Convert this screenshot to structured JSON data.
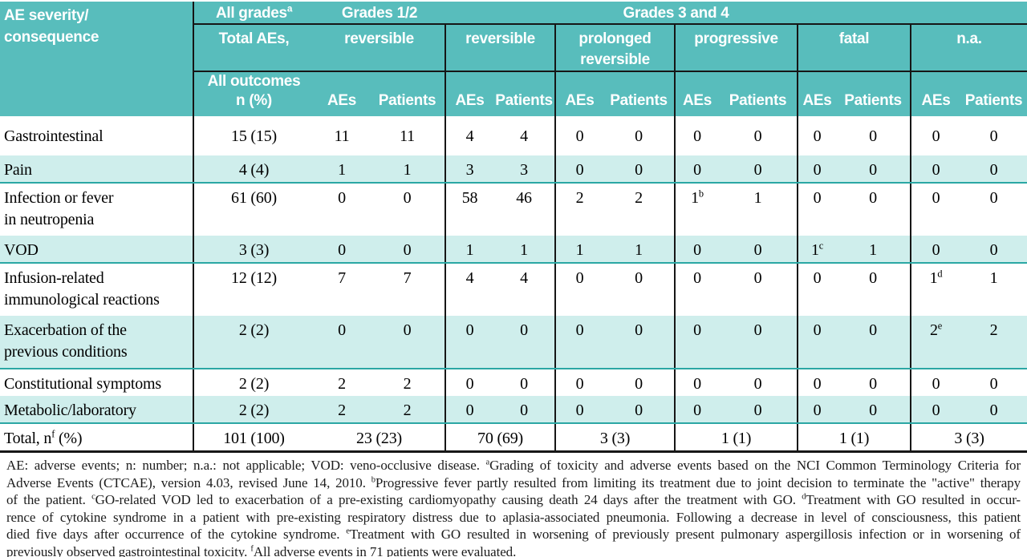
{
  "table": {
    "header": {
      "row_label_title": "AE severity/\nconsequence",
      "all_grades": "All grades^a",
      "grades_1_2": "Grades 1/2",
      "grades_3_4": "Grades 3 and 4",
      "total_aes": "Total AEs,",
      "reversible_12": "reversible",
      "outcomes": [
        "reversible",
        "prolonged\nreversible",
        "progressive",
        "fatal",
        "n.a."
      ],
      "all_outcomes": "All outcomes\nn (%)",
      "aes": "AEs",
      "patients": "Patients"
    },
    "rows": [
      {
        "label": "Gastrointestinal",
        "stripe": false,
        "cells": [
          "15 (15)",
          "11",
          "11",
          "4",
          "4",
          "0",
          "0",
          "0",
          "0",
          "0",
          "0",
          "0",
          "0"
        ]
      },
      {
        "label": "Pain",
        "stripe": true,
        "cells": [
          "4 (4)",
          "1",
          "1",
          "3",
          "3",
          "0",
          "0",
          "0",
          "0",
          "0",
          "0",
          "0",
          "0"
        ]
      },
      {
        "label": "Infection or fever\nin neutropenia",
        "stripe": false,
        "cells": [
          "61 (60)",
          "0",
          "0",
          "58",
          "46",
          "2",
          "2",
          "1^b",
          "1",
          "0",
          "0",
          "0",
          "0"
        ]
      },
      {
        "label": "VOD",
        "stripe": true,
        "cells": [
          "3 (3)",
          "0",
          "0",
          "1",
          "1",
          "1",
          "1",
          "0",
          "0",
          "1^c",
          "1",
          "0",
          "0"
        ]
      },
      {
        "label": "Infusion-related\nimmunological reactions",
        "stripe": false,
        "cells": [
          "12 (12)",
          "7",
          "7",
          "4",
          "4",
          "0",
          "0",
          "0",
          "0",
          "0",
          "0",
          "1^d",
          "1"
        ]
      },
      {
        "label": "Exacerbation of the\nprevious conditions",
        "stripe": true,
        "cells": [
          "2 (2)",
          "0",
          "0",
          "0",
          "0",
          "0",
          "0",
          "0",
          "0",
          "0",
          "0",
          "2^e",
          "2"
        ]
      },
      {
        "label": "Constitutional symptoms",
        "stripe": false,
        "cells": [
          "2 (2)",
          "2",
          "2",
          "0",
          "0",
          "0",
          "0",
          "0",
          "0",
          "0",
          "0",
          "0",
          "0"
        ]
      },
      {
        "label": "Metabolic/laboratory",
        "stripe": true,
        "cells": [
          "2 (2)",
          "2",
          "2",
          "0",
          "0",
          "0",
          "0",
          "0",
          "0",
          "0",
          "0",
          "0",
          "0"
        ]
      }
    ],
    "total_row": {
      "label": "Total, n^f (%)",
      "cells": [
        "101 (100)",
        "23 (23)",
        "70 (69)",
        "3 (3)",
        "1 (1)",
        "1 (1)",
        "3 (3)"
      ]
    }
  },
  "footnote_lines": [
    "AE: adverse events; n: number; n.a.: not applicable; VOD: veno-occlusive disease. ^aGrading of toxicity and adverse events based on the NCI Common Terminology Criteria for",
    "Adverse Events (CTCAE), version 4.03, revised June 14, 2010. ^bProgressive fever partly resulted from limiting its treatment due to joint decision to terminate the \"active\" therapy",
    "of the patient. ^cGO-related VOD led to exacerbation of a pre-existing cardiomyopathy causing death 24 days after the treatment with GO. ^dTreatment with GO resulted in occur-",
    "rence of cytokine syndrome in a patient with pre-existing respiratory distress due to aplasia-associated pneumonia. Following a decrease in level of consciousness, this patient",
    "died five days after occurrence of the cytokine syndrome. ^eTreatment with GO resulted in worsening of previously present pulmonary aspergillosis infection or in worsening of",
    "previously observed gastrointestinal toxicity. ^fAll adverse events in 71 patients were evaluated."
  ],
  "colors": {
    "header_teal": "#58bdbc",
    "stripe_cyan": "#cfeeec",
    "stripe_divider_teal": "#2ba7a4",
    "rule_black": "#161616"
  }
}
